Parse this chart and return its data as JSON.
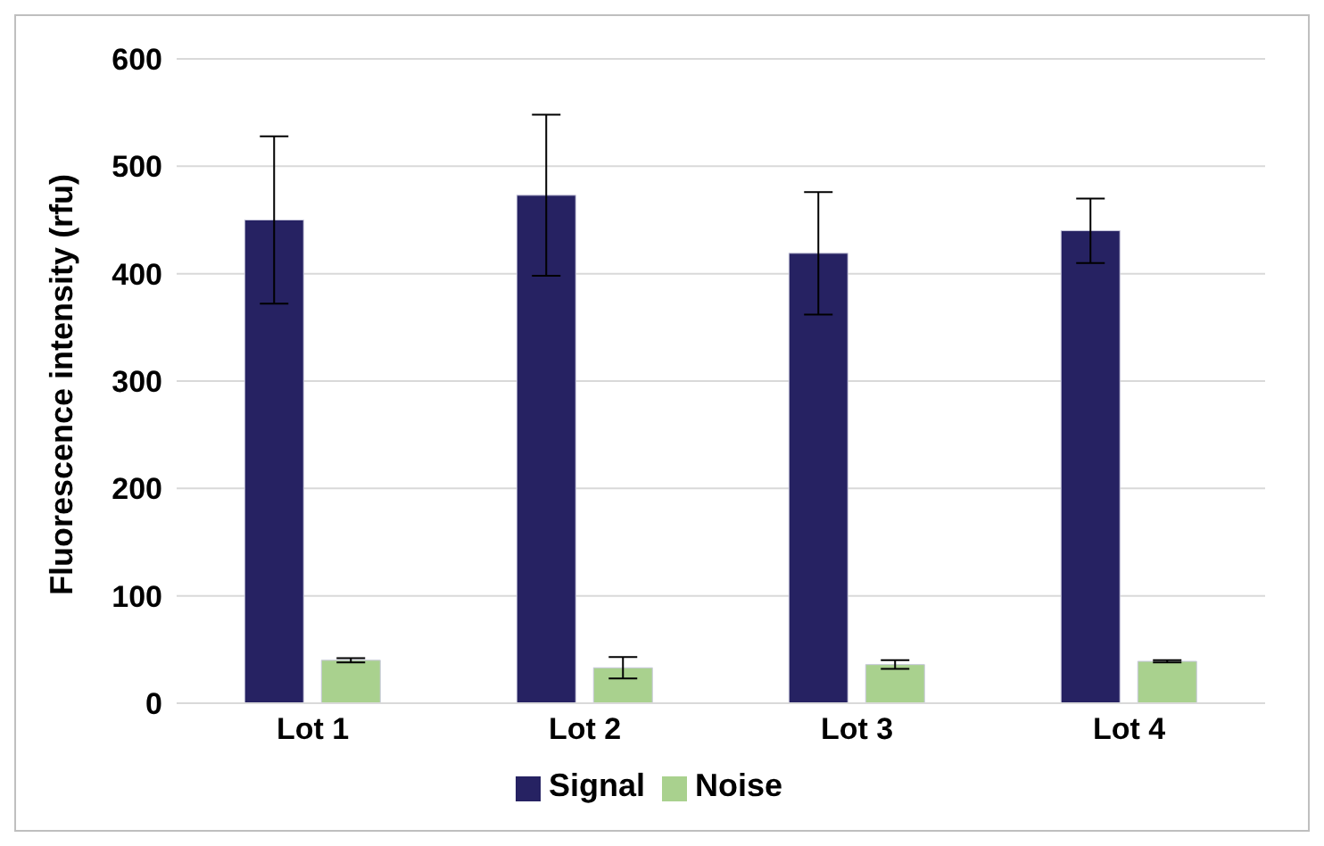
{
  "chart_data": {
    "type": "bar",
    "ylabel": "Fluorescence intensity (rfu)",
    "categories": [
      "Lot 1",
      "Lot 2",
      "Lot 3",
      "Lot 4"
    ],
    "series": [
      {
        "name": "Signal",
        "color": "#262262",
        "values": [
          450,
          473,
          419,
          440
        ],
        "errors": [
          78,
          75,
          57,
          30
        ]
      },
      {
        "name": "Noise",
        "color": "#a9d18e",
        "values": [
          40,
          33,
          36,
          39
        ],
        "errors": [
          2,
          10,
          4,
          1
        ]
      }
    ],
    "ylim": [
      0,
      600
    ],
    "yticks": [
      0,
      100,
      200,
      300,
      400,
      500,
      600
    ],
    "grid": "y",
    "legend": "bottom"
  }
}
